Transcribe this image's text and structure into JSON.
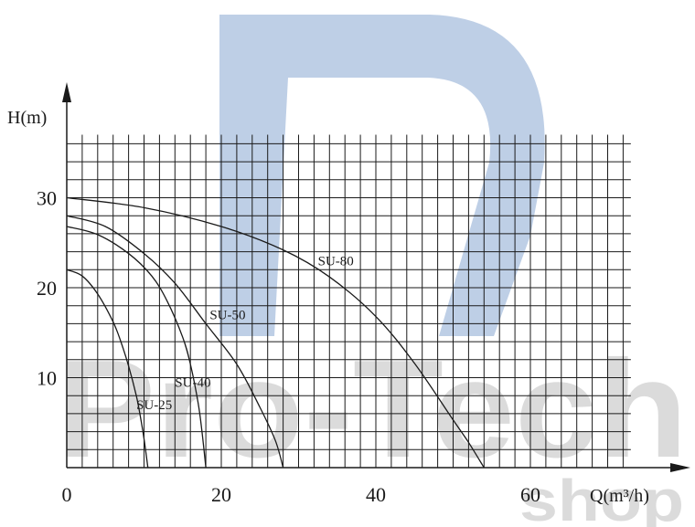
{
  "colors": {
    "ink": "#1a1a1a",
    "grid": "#1a1a1a",
    "watermark_blue": "#b3c7e2",
    "watermark_grey": "#d5d5d5"
  },
  "watermark": {
    "logo_text": "Pro-Tech",
    "logo_subtext": "shop"
  },
  "chart_data": {
    "type": "line",
    "title": "",
    "xlabel": "Q(m³/h)",
    "ylabel": "H(m)",
    "xlim": [
      0,
      70
    ],
    "ylim": [
      0,
      37
    ],
    "x_ticks": [
      0,
      20,
      40,
      60
    ],
    "y_ticks": [
      10,
      20,
      30
    ],
    "grid": true,
    "series": [
      {
        "name": "SU-25",
        "label_at": [
          9,
          6.5
        ],
        "points": [
          [
            0,
            22
          ],
          [
            2,
            21.3
          ],
          [
            4,
            19.3
          ],
          [
            6,
            16.2
          ],
          [
            7,
            14.0
          ],
          [
            8,
            11.3
          ],
          [
            9,
            8.0
          ],
          [
            9.5,
            5.8
          ],
          [
            10,
            3.2
          ],
          [
            10.5,
            0
          ]
        ]
      },
      {
        "name": "SU-40",
        "label_at": [
          14,
          9
        ],
        "points": [
          [
            0,
            26.8
          ],
          [
            4,
            25.9
          ],
          [
            8,
            23.8
          ],
          [
            11,
            21.3
          ],
          [
            13,
            18.5
          ],
          [
            15,
            14.5
          ],
          [
            16,
            11.5
          ],
          [
            17,
            7.2
          ],
          [
            17.5,
            4.0
          ],
          [
            18,
            0
          ]
        ]
      },
      {
        "name": "SU-50",
        "label_at": [
          18.5,
          16.5
        ],
        "points": [
          [
            0,
            28
          ],
          [
            5,
            26.8
          ],
          [
            10,
            23.8
          ],
          [
            14,
            20.5
          ],
          [
            18,
            16.0
          ],
          [
            22,
            11.5
          ],
          [
            25,
            6.7
          ],
          [
            27,
            3.0
          ],
          [
            28,
            0
          ]
        ]
      },
      {
        "name": "SU-80",
        "label_at": [
          32.5,
          22.5
        ],
        "points": [
          [
            0,
            30
          ],
          [
            10,
            28.9
          ],
          [
            20,
            26.8
          ],
          [
            28,
            24.2
          ],
          [
            34,
            21.2
          ],
          [
            40,
            16.8
          ],
          [
            45,
            11.6
          ],
          [
            50,
            5.3
          ],
          [
            52,
            2.8
          ],
          [
            54,
            0
          ]
        ]
      }
    ]
  }
}
